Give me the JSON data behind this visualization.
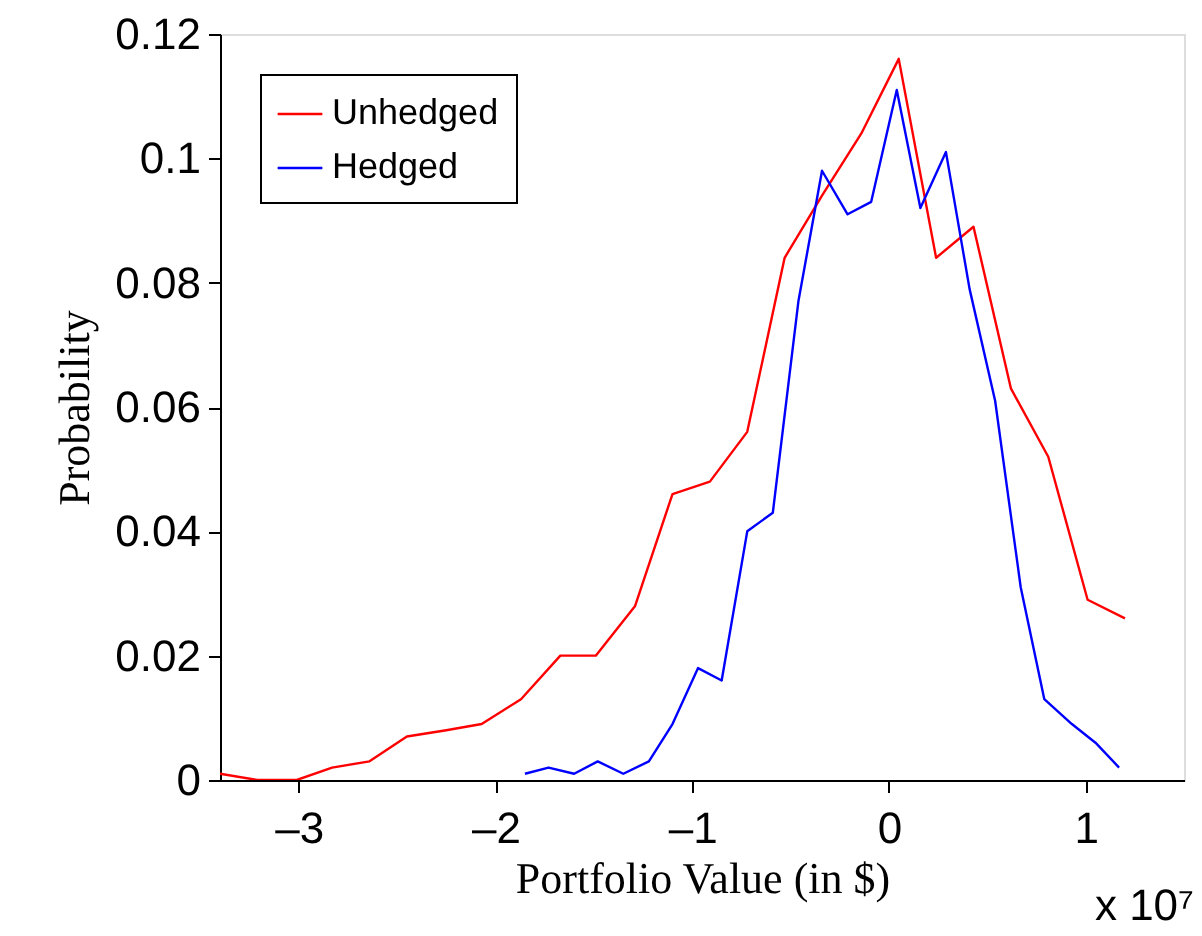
{
  "chart_data": {
    "type": "line",
    "xlabel": "Portfolio Value (in $)",
    "ylabel": "Probability",
    "annotations": [
      "x 10⁷"
    ],
    "xlim": [
      -3.4,
      1.5
    ],
    "ylim": [
      0,
      0.12
    ],
    "xticks": [
      {
        "value": -3,
        "label": "–3"
      },
      {
        "value": -2,
        "label": "–2"
      },
      {
        "value": -1,
        "label": "–1"
      },
      0,
      1
    ],
    "yticks": [
      0,
      0.02,
      0.04,
      0.06,
      0.08,
      0.1,
      0.12
    ],
    "grid": false,
    "legend": "top left",
    "marker": "none",
    "line_style": "solid",
    "series": [
      {
        "name": "Unhedged",
        "color": "#ff0000",
        "x": [
          -3.4,
          -3.21,
          -3.01,
          -2.83,
          -2.64,
          -2.45,
          -2.25,
          -2.07,
          -1.87,
          -1.67,
          -1.49,
          -1.29,
          -1.1,
          -0.91,
          -0.72,
          -0.53,
          -0.34,
          -0.14,
          0.05,
          0.24,
          0.43,
          0.62,
          0.81,
          1.01,
          1.2
        ],
        "values": [
          0.001,
          0,
          0,
          0.002,
          0.003,
          0.007,
          0.008,
          0.009,
          0.013,
          0.02,
          0.02,
          0.028,
          0.046,
          0.048,
          0.056,
          0.084,
          0.094,
          0.104,
          0.116,
          0.084,
          0.089,
          0.063,
          0.052,
          0.029,
          0.026
        ]
      },
      {
        "name": "Hedged",
        "color": "#0000ff",
        "x": [
          -1.85,
          -1.73,
          -1.6,
          -1.48,
          -1.35,
          -1.22,
          -1.1,
          -0.97,
          -0.85,
          -0.72,
          -0.59,
          -0.46,
          -0.34,
          -0.21,
          -0.09,
          0.04,
          0.16,
          0.29,
          0.41,
          0.54,
          0.67,
          0.79,
          0.93,
          1.05,
          1.17
        ],
        "values": [
          0.001,
          0.002,
          0.001,
          0.003,
          0.001,
          0.003,
          0.009,
          0.018,
          0.016,
          0.04,
          0.043,
          0.077,
          0.098,
          0.091,
          0.093,
          0.111,
          0.092,
          0.101,
          0.079,
          0.061,
          0.031,
          0.013,
          0.009,
          0.006,
          0.002
        ]
      }
    ]
  }
}
